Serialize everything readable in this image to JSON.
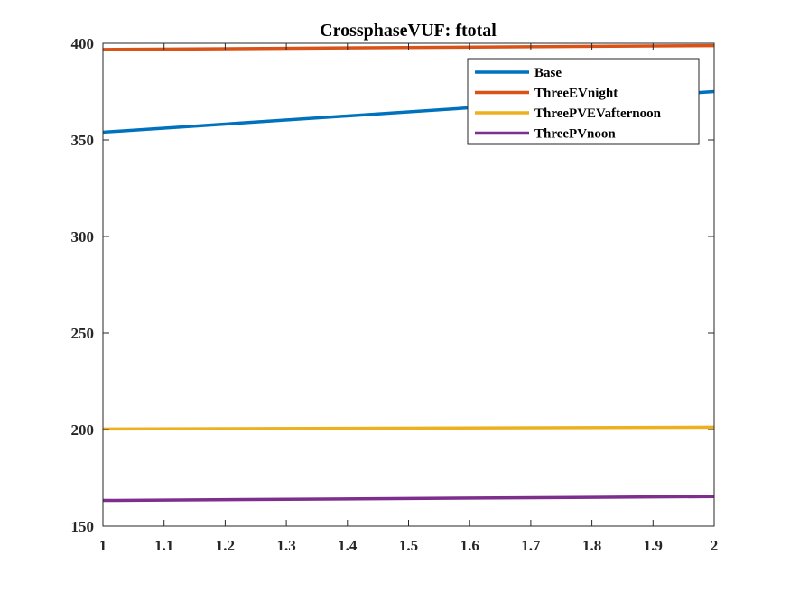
{
  "chart_data": {
    "type": "line",
    "title": "CrossphaseVUF: ftotal",
    "xlabel": "",
    "ylabel": "",
    "x": [
      1,
      2
    ],
    "xlim": [
      1,
      2
    ],
    "ylim": [
      150,
      400
    ],
    "xticks": [
      1,
      1.1,
      1.2,
      1.3,
      1.4,
      1.5,
      1.6,
      1.7,
      1.8,
      1.9,
      2
    ],
    "xtick_labels": [
      "1",
      "1.1",
      "1.2",
      "1.3",
      "1.4",
      "1.5",
      "1.6",
      "1.7",
      "1.8",
      "1.9",
      "2"
    ],
    "yticks": [
      150,
      200,
      250,
      300,
      350,
      400
    ],
    "ytick_labels": [
      "150",
      "200",
      "250",
      "300",
      "350",
      "400"
    ],
    "grid": false,
    "legend_position": "top-right",
    "series": [
      {
        "name": "Base",
        "values": [
          354,
          375
        ],
        "color": "#0072BD"
      },
      {
        "name": "ThreeEVnight",
        "values": [
          396.8,
          398.8
        ],
        "color": "#D95319"
      },
      {
        "name": "ThreePVEVafternoon",
        "values": [
          200.3,
          201.2
        ],
        "color": "#EDB120"
      },
      {
        "name": "ThreePVnoon",
        "values": [
          163.3,
          165.3
        ],
        "color": "#7E2F8E"
      }
    ]
  }
}
